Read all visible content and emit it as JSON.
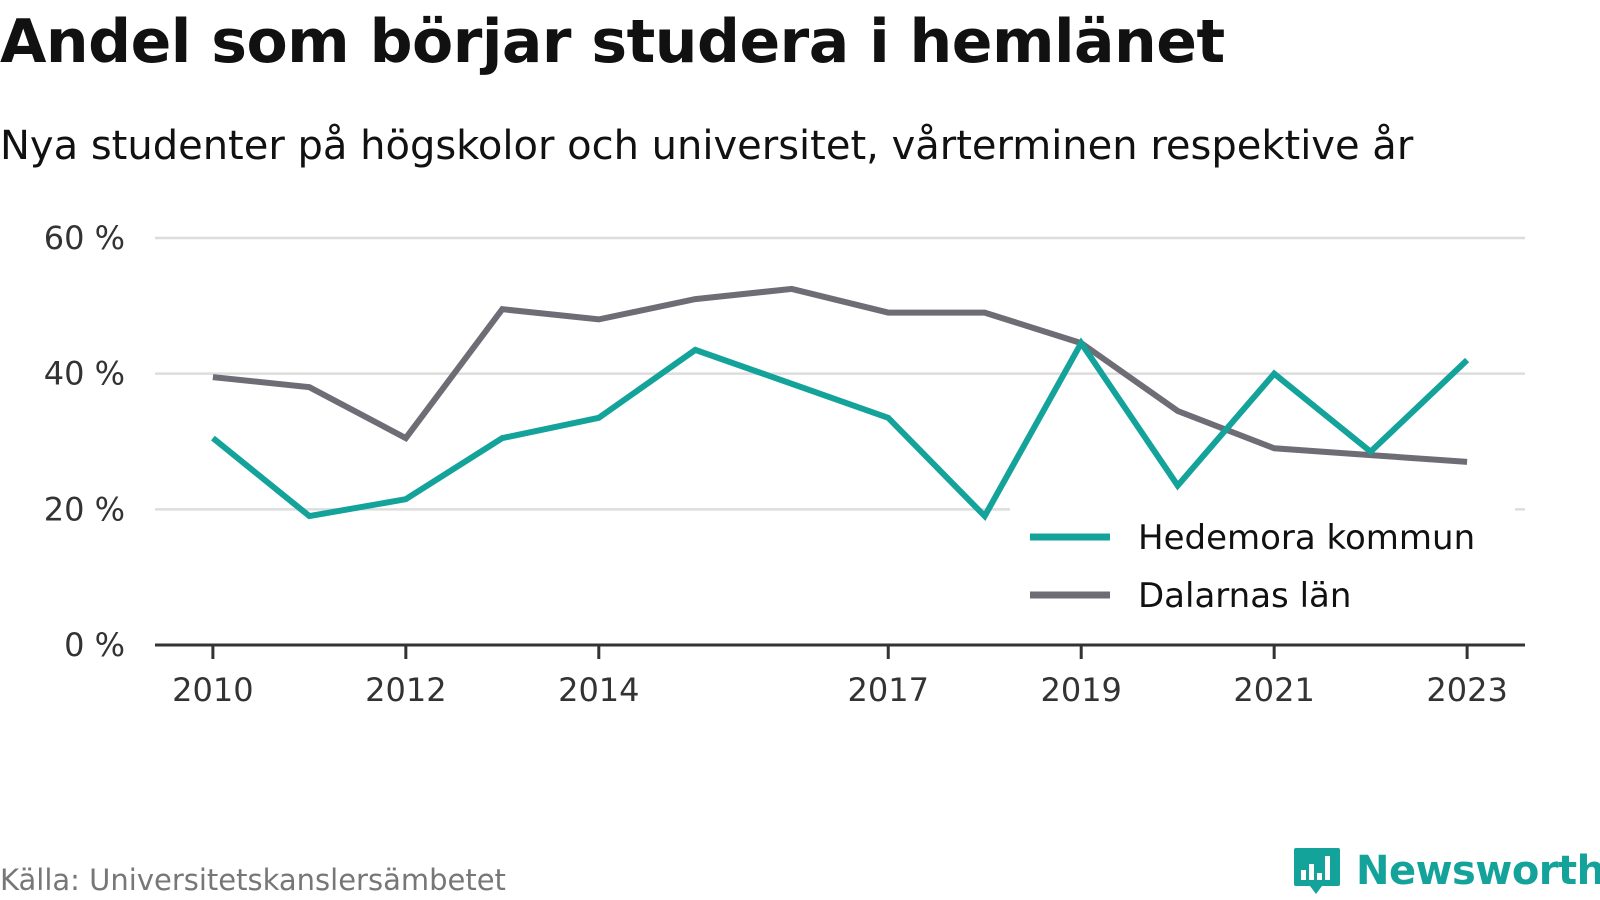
{
  "header": {
    "title": "Andel som börjar studera i hemlänet",
    "subtitle": "Nya studenter på högskolor och universitet, vårterminen respektive år"
  },
  "footer": {
    "source": "Källa: Universitetskanslersämbetet",
    "brand": "Newsworthy",
    "brand_icon": "chart-bubble-icon",
    "brand_color": "#14a39a"
  },
  "chart_data": {
    "type": "line",
    "title": "Andel som börjar studera i hemlänet",
    "subtitle": "Nya studenter på högskolor och universitet, vårterminen respektive år",
    "xlabel": "",
    "ylabel": "",
    "x": [
      2010,
      2011,
      2012,
      2013,
      2014,
      2015,
      2016,
      2017,
      2018,
      2019,
      2020,
      2021,
      2022,
      2023
    ],
    "x_ticks": [
      2010,
      2012,
      2014,
      2017,
      2019,
      2021,
      2023
    ],
    "x_tick_labels": [
      "2010",
      "2012",
      "2014",
      "2017",
      "2019",
      "2021",
      "2023"
    ],
    "xlim": [
      2009.4,
      2023.6
    ],
    "ylim": [
      0,
      60
    ],
    "y_ticks": [
      0,
      20,
      40,
      60
    ],
    "y_tick_labels": [
      "0 %",
      "20 %",
      "40 %",
      "60 %"
    ],
    "grid": true,
    "legend_position": "bottom-right",
    "series": [
      {
        "name": "Hedemora kommun",
        "color": "#14a39a",
        "values": [
          30.5,
          19.0,
          21.5,
          30.5,
          33.5,
          43.5,
          38.5,
          33.5,
          19.0,
          44.5,
          23.5,
          40.0,
          28.5,
          42.0
        ]
      },
      {
        "name": "Dalarnas län",
        "color": "#6e6d76",
        "values": [
          39.5,
          38.0,
          30.5,
          49.5,
          48.0,
          51.0,
          52.5,
          49.0,
          49.0,
          44.5,
          34.5,
          29.0,
          28.0,
          27.0
        ]
      }
    ]
  }
}
